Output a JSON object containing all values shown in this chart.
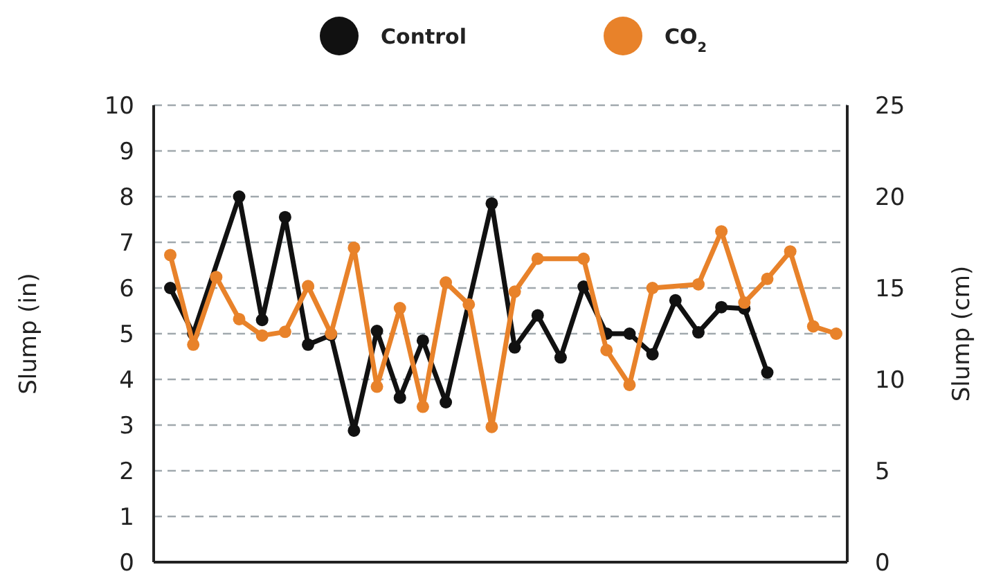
{
  "chart_data": {
    "type": "line",
    "ylabel": "Slump (in)",
    "y2label": "Slump (cm)",
    "categories": [
      null,
      null,
      null,
      null,
      null,
      null,
      null,
      null,
      null,
      null,
      null,
      null,
      null,
      null,
      null,
      null,
      null,
      null,
      null,
      null,
      null,
      null,
      null,
      null,
      null,
      null,
      null,
      null,
      null,
      null
    ],
    "ylim": [
      0,
      10
    ],
    "yticks": [
      0,
      1,
      2,
      3,
      4,
      5,
      6,
      7,
      8,
      9,
      10
    ],
    "y2lim": [
      0,
      25
    ],
    "y2ticks": [
      0,
      5,
      10,
      15,
      20,
      25
    ],
    "tick_labels": "y",
    "grid": "y",
    "legend": "top",
    "marker": "circle",
    "line_style": "solid",
    "series": [
      {
        "name": "Control",
        "color": "#111111",
        "values": [
          6.0,
          5.0,
          null,
          8.0,
          5.3,
          7.55,
          4.76,
          4.97,
          2.88,
          5.06,
          3.6,
          4.85,
          3.5,
          null,
          7.85,
          4.7,
          5.4,
          4.48,
          6.03,
          5.0,
          5.0,
          4.55,
          5.73,
          5.03,
          5.58,
          5.55,
          4.15,
          null,
          null,
          null
        ]
      },
      {
        "name": "CO$_{2}$",
        "color": "#e8822a",
        "axis": "y2",
        "values": [
          16.8,
          11.9,
          15.6,
          13.3,
          12.4,
          12.6,
          15.1,
          12.5,
          17.2,
          9.6,
          13.9,
          8.5,
          15.3,
          14.1,
          7.4,
          14.8,
          16.6,
          null,
          16.6,
          11.6,
          9.7,
          15.0,
          null,
          15.2,
          18.1,
          14.2,
          15.5,
          17.0,
          12.9,
          12.5
        ]
      }
    ]
  }
}
